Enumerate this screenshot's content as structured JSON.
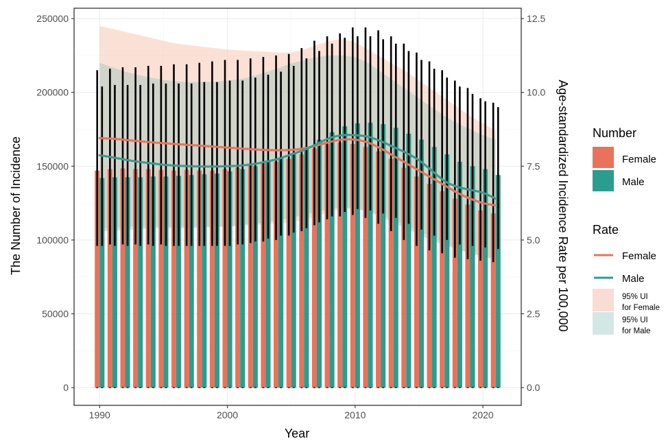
{
  "chart_data": {
    "type": "bar",
    "x": [
      1990,
      1991,
      1992,
      1993,
      1994,
      1995,
      1996,
      1997,
      1998,
      1999,
      2000,
      2001,
      2002,
      2003,
      2004,
      2005,
      2006,
      2007,
      2008,
      2009,
      2010,
      2011,
      2012,
      2013,
      2014,
      2015,
      2016,
      2017,
      2018,
      2019,
      2020,
      2021
    ],
    "xlabel": "Year",
    "ylabel_left": "The Number of Incidence",
    "ylabel_right": "Age-standardized Incidence Rate per 100,000",
    "x_ticks": [
      "1990",
      "2000",
      "2010",
      "2020"
    ],
    "x_tick_values": [
      1990,
      2000,
      2010,
      2020
    ],
    "xlim": [
      1988,
      2023
    ],
    "ylim_left": [
      -12000,
      257000
    ],
    "ylim_right": [
      -0.6,
      12.85
    ],
    "left_ticks": [
      "0",
      "50000",
      "100000",
      "150000",
      "200000",
      "250000"
    ],
    "left_tick_values": [
      0,
      50000,
      100000,
      150000,
      200000,
      250000
    ],
    "right_ticks": [
      "0.0",
      "2.5",
      "5.0",
      "7.5",
      "10.0",
      "12.5"
    ],
    "right_tick_values": [
      0,
      2.5,
      5,
      7.5,
      10,
      12.5
    ],
    "grid": true,
    "bars": [
      {
        "name": "Female",
        "color": "#E8735A",
        "values": [
          147000,
          148000,
          148500,
          148000,
          148000,
          147500,
          147000,
          147500,
          147000,
          147000,
          148000,
          149000,
          151000,
          152000,
          153000,
          155000,
          158000,
          162000,
          165000,
          166000,
          165000,
          163000,
          160000,
          155000,
          149000,
          143000,
          138000,
          133000,
          128000,
          124000,
          120000,
          118000
        ],
        "lower": [
          96000,
          97000,
          97000,
          97000,
          97000,
          97000,
          96000,
          96000,
          96000,
          96000,
          96000,
          97000,
          98000,
          99000,
          100000,
          103000,
          106000,
          110000,
          114000,
          116000,
          117000,
          115000,
          111000,
          106000,
          100000,
          96000,
          93000,
          91000,
          88000,
          87000,
          86000,
          85000
        ],
        "upper": [
          215000,
          216000,
          217000,
          217000,
          218000,
          218000,
          219000,
          219000,
          220000,
          221000,
          222000,
          222000,
          223000,
          224000,
          225000,
          226000,
          230000,
          235000,
          238000,
          240000,
          244000,
          244000,
          242000,
          238000,
          233000,
          227000,
          221000,
          215000,
          208000,
          203000,
          196000,
          193000
        ]
      },
      {
        "name": "Male",
        "color": "#2A9D8F",
        "values": [
          142000,
          142500,
          142500,
          142500,
          143000,
          143000,
          143500,
          144000,
          144500,
          145000,
          146500,
          148000,
          150000,
          153000,
          156000,
          159000,
          163000,
          168000,
          173000,
          177000,
          179000,
          179500,
          178500,
          176000,
          172000,
          168000,
          163000,
          158000,
          153000,
          150000,
          148000,
          144000
        ],
        "lower": [
          96000,
          96000,
          96000,
          96000,
          96000,
          96000,
          96000,
          96000,
          96000,
          96000,
          96000,
          97000,
          99000,
          101000,
          103000,
          105000,
          108000,
          112000,
          116000,
          119000,
          121000,
          120000,
          118000,
          115000,
          111000,
          107000,
          103000,
          100000,
          97000,
          96000,
          95000,
          94000
        ],
        "upper": [
          204000,
          205000,
          205000,
          205000,
          206000,
          206000,
          206000,
          206000,
          207000,
          207000,
          208000,
          208000,
          210000,
          212000,
          214000,
          218000,
          223000,
          228000,
          233000,
          237000,
          238000,
          238000,
          236000,
          233000,
          228000,
          222000,
          216000,
          210000,
          204000,
          199000,
          194000,
          190000
        ]
      }
    ],
    "rate_lines": [
      {
        "name": "Female",
        "color": "#E8735A",
        "values": [
          8.45,
          8.43,
          8.39,
          8.35,
          8.31,
          8.28,
          8.25,
          8.22,
          8.19,
          8.16,
          8.13,
          8.1,
          8.07,
          8.05,
          8.04,
          8.05,
          8.1,
          8.2,
          8.32,
          8.4,
          8.4,
          8.3,
          8.1,
          7.85,
          7.6,
          7.35,
          7.1,
          6.85,
          6.6,
          6.4,
          6.25,
          6.17
        ],
        "ui_lower": [
          5.4,
          5.4,
          5.45,
          5.45,
          5.45,
          5.45,
          5.45,
          5.45,
          5.45,
          5.45,
          5.45,
          5.48,
          5.5,
          5.53,
          5.55,
          5.6,
          5.68,
          5.8,
          5.95,
          6.05,
          6.05,
          5.98,
          5.85,
          5.68,
          5.5,
          5.3,
          5.1,
          4.9,
          4.7,
          4.55,
          4.45,
          4.4
        ],
        "ui_upper": [
          12.25,
          12.15,
          12.05,
          11.95,
          11.85,
          11.75,
          11.65,
          11.6,
          11.55,
          11.5,
          11.45,
          11.42,
          11.4,
          11.38,
          11.35,
          11.35,
          11.45,
          11.6,
          11.75,
          11.8,
          11.7,
          11.45,
          11.2,
          10.95,
          10.7,
          10.4,
          10.1,
          9.8,
          9.5,
          9.2,
          8.95,
          8.7
        ],
        "ui_color": "#F7C8B3"
      },
      {
        "name": "Male",
        "color": "#3E9A8D",
        "values": [
          7.87,
          7.8,
          7.72,
          7.65,
          7.6,
          7.55,
          7.52,
          7.5,
          7.49,
          7.49,
          7.5,
          7.52,
          7.57,
          7.65,
          7.75,
          7.9,
          8.05,
          8.25,
          8.45,
          8.55,
          8.55,
          8.5,
          8.35,
          8.15,
          7.95,
          7.7,
          7.35,
          7.0,
          6.8,
          6.7,
          6.6,
          6.4
        ],
        "ui_lower": [
          5.3,
          5.3,
          5.35,
          5.35,
          5.4,
          5.4,
          5.4,
          5.4,
          5.42,
          5.44,
          5.46,
          5.5,
          5.55,
          5.6,
          5.66,
          5.75,
          5.85,
          5.95,
          6.05,
          6.1,
          6.08,
          5.95,
          5.78,
          5.58,
          5.38,
          5.18,
          4.98,
          4.82,
          4.68,
          4.55,
          4.45,
          4.3
        ],
        "ui_upper": [
          11.0,
          10.85,
          10.7,
          10.6,
          10.5,
          10.42,
          10.38,
          10.35,
          10.35,
          10.36,
          10.4,
          10.45,
          10.55,
          10.68,
          10.82,
          10.98,
          11.1,
          11.2,
          11.25,
          11.25,
          11.2,
          11.0,
          10.7,
          10.4,
          10.1,
          9.8,
          9.5,
          9.2,
          8.95,
          8.75,
          8.55,
          8.4
        ],
        "ui_color": "#A8C8BE"
      }
    ],
    "legend": {
      "number_title": "Number",
      "number_items": [
        "Female",
        "Male"
      ],
      "rate_title": "Rate",
      "rate_items": [
        "Female",
        "Male"
      ],
      "ui_female": [
        "95% UI",
        "for Female"
      ],
      "ui_male": [
        "95% UI",
        "for Male"
      ],
      "position": "right"
    }
  }
}
